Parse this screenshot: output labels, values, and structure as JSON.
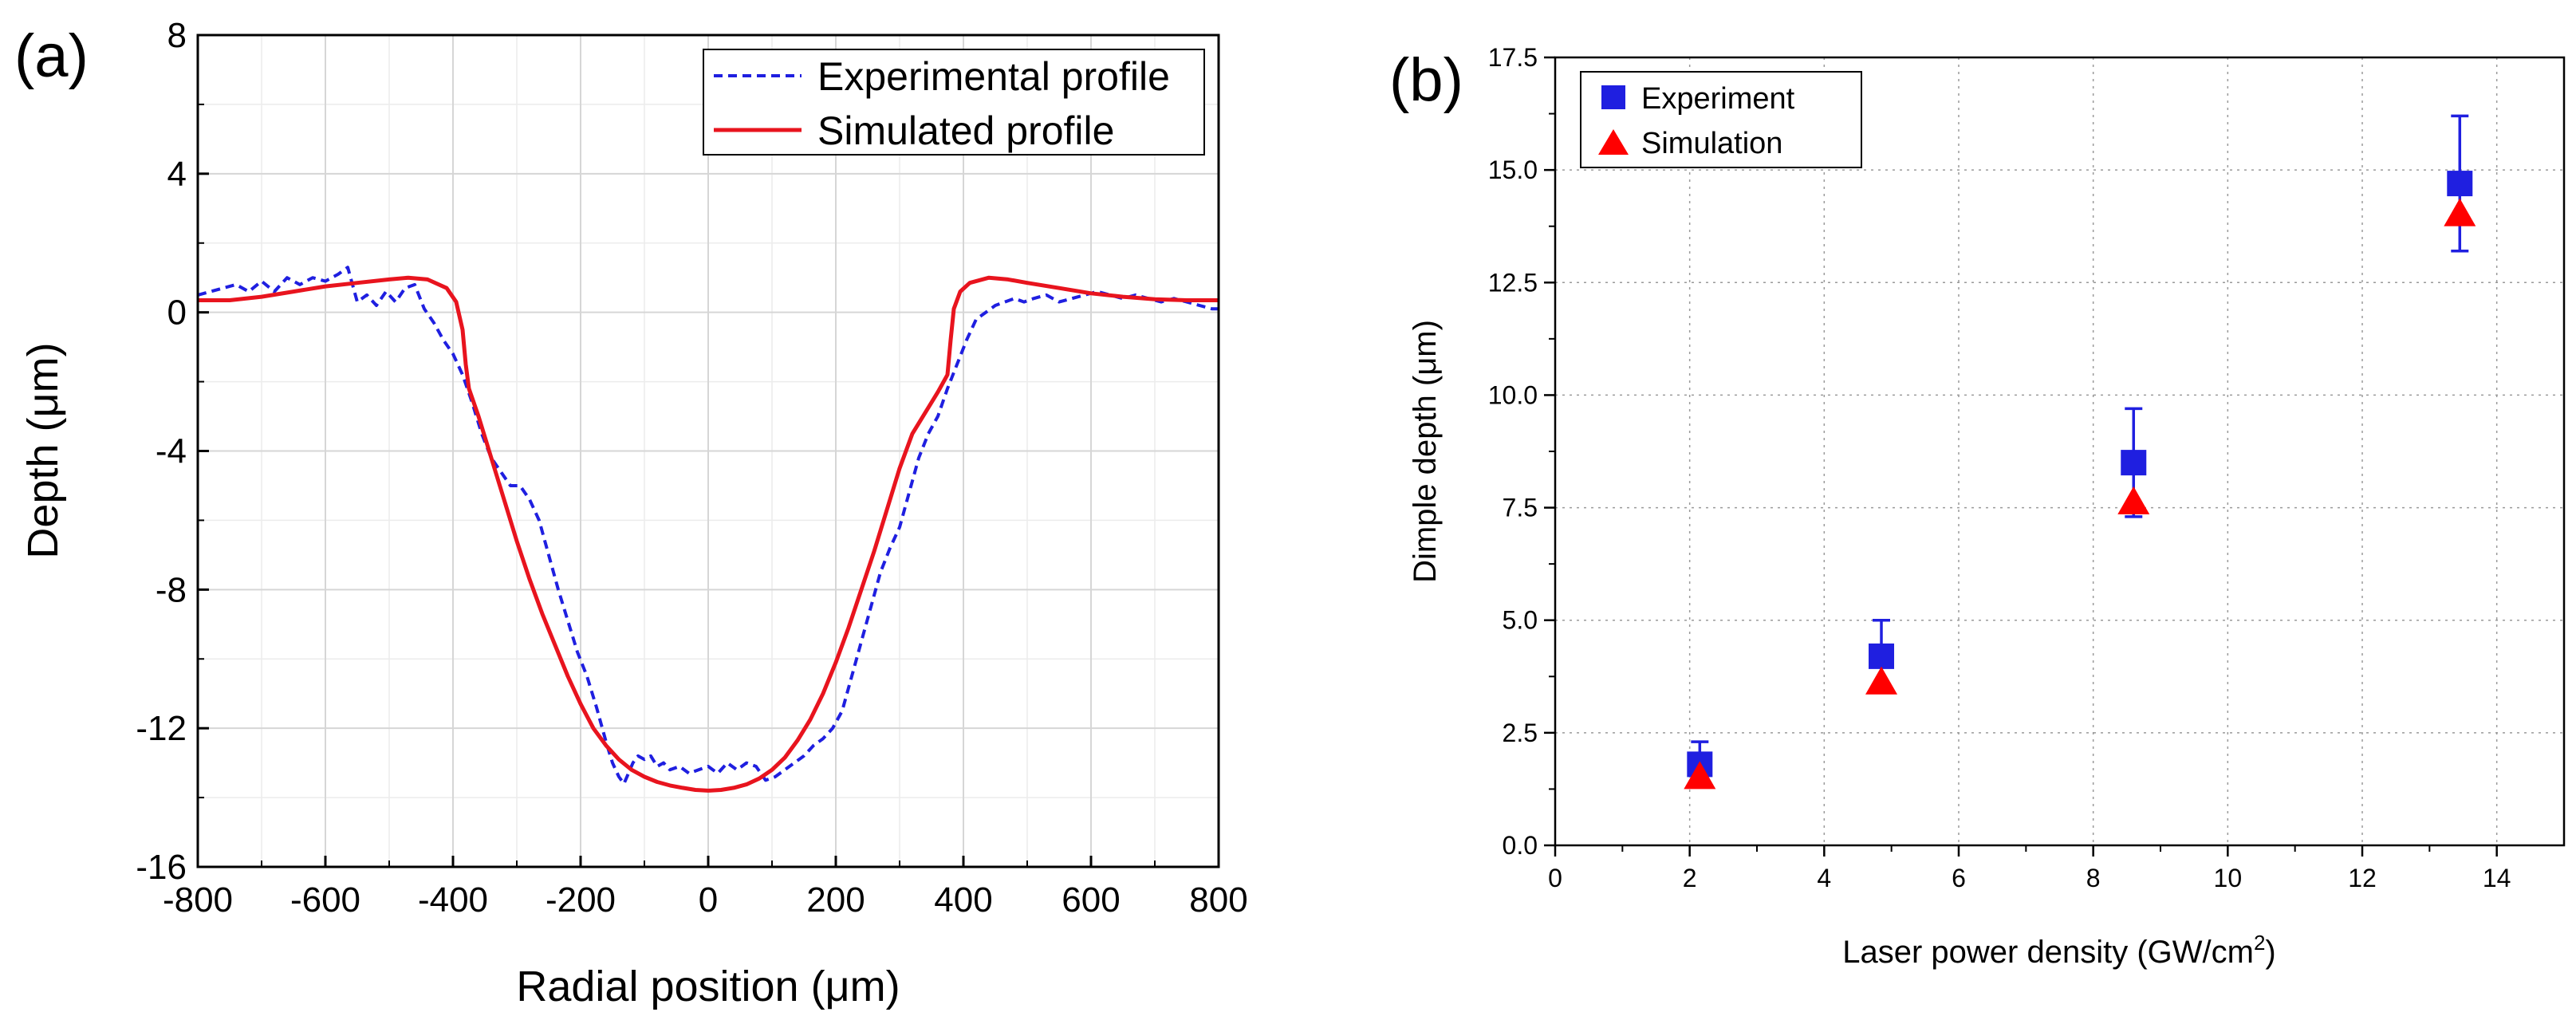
{
  "chart_data": [
    {
      "panel": "(a)",
      "type": "line",
      "xlabel": "Radial position (μm)",
      "ylabel": "Depth (μm)",
      "xlim": [
        -800,
        800
      ],
      "ylim": [
        -16,
        8
      ],
      "x_ticks": [
        "-800",
        "-600",
        "-400",
        "-200",
        "0",
        "200",
        "400",
        "600",
        "800"
      ],
      "y_ticks": [
        "-16",
        "-12",
        "-8",
        "-4",
        "0",
        "4",
        "8"
      ],
      "grid": true,
      "legend_position": "top-right",
      "series": [
        {
          "name": "Experimental profile",
          "style": "dashed",
          "color": "#1f1fe0",
          "x": [
            -800,
            -780,
            -760,
            -740,
            -720,
            -700,
            -680,
            -660,
            -640,
            -620,
            -600,
            -580,
            -565,
            -550,
            -535,
            -520,
            -505,
            -490,
            -475,
            -460,
            -445,
            -430,
            -415,
            -400,
            -385,
            -370,
            -355,
            -340,
            -325,
            -310,
            -295,
            -280,
            -265,
            -250,
            -235,
            -220,
            -205,
            -190,
            -175,
            -160,
            -150,
            -140,
            -132,
            -125,
            -118,
            -110,
            -100,
            -90,
            -80,
            -70,
            -60,
            -45,
            -30,
            -15,
            0,
            15,
            30,
            45,
            60,
            75,
            90,
            105,
            120,
            135,
            150,
            165,
            180,
            195,
            210,
            225,
            240,
            255,
            270,
            285,
            300,
            315,
            330,
            345,
            360,
            375,
            390,
            405,
            420,
            435,
            450,
            465,
            480,
            495,
            510,
            530,
            550,
            570,
            590,
            610,
            630,
            650,
            670,
            690,
            710,
            730,
            750,
            770,
            790,
            800
          ],
          "y": [
            0.5,
            0.6,
            0.7,
            0.8,
            0.6,
            0.9,
            0.6,
            1.0,
            0.8,
            1.0,
            0.9,
            1.1,
            1.3,
            0.3,
            0.5,
            0.2,
            0.6,
            0.3,
            0.7,
            0.8,
            0.1,
            -0.3,
            -0.8,
            -1.2,
            -1.8,
            -2.6,
            -3.5,
            -4.2,
            -4.6,
            -5.0,
            -5.0,
            -5.4,
            -6.0,
            -7.0,
            -8.0,
            -8.9,
            -9.8,
            -10.5,
            -11.4,
            -12.4,
            -13.0,
            -13.4,
            -13.6,
            -13.3,
            -13.0,
            -12.8,
            -12.9,
            -12.8,
            -13.1,
            -13.0,
            -13.2,
            -13.1,
            -13.3,
            -13.2,
            -13.1,
            -13.3,
            -13.0,
            -13.2,
            -13.0,
            -13.1,
            -13.5,
            -13.4,
            -13.2,
            -13.0,
            -12.8,
            -12.5,
            -12.3,
            -12.0,
            -11.5,
            -10.5,
            -9.5,
            -8.5,
            -7.5,
            -6.8,
            -6.2,
            -5.2,
            -4.2,
            -3.5,
            -3.0,
            -2.2,
            -1.5,
            -0.8,
            -0.2,
            0.0,
            0.2,
            0.3,
            0.4,
            0.3,
            0.4,
            0.5,
            0.3,
            0.4,
            0.5,
            0.6,
            0.5,
            0.4,
            0.5,
            0.4,
            0.3,
            0.4,
            0.3,
            0.2,
            0.1,
            0.1
          ]
        },
        {
          "name": "Simulated profile",
          "style": "solid",
          "color": "#e8141e",
          "x": [
            -800,
            -750,
            -700,
            -650,
            -600,
            -550,
            -500,
            -470,
            -440,
            -410,
            -395,
            -385,
            -380,
            -375,
            -360,
            -340,
            -320,
            -300,
            -280,
            -260,
            -240,
            -220,
            -200,
            -180,
            -160,
            -140,
            -120,
            -100,
            -80,
            -60,
            -40,
            -20,
            0,
            20,
            40,
            60,
            80,
            100,
            120,
            140,
            160,
            180,
            200,
            220,
            240,
            260,
            280,
            300,
            320,
            340,
            360,
            375,
            380,
            385,
            395,
            410,
            440,
            470,
            500,
            550,
            600,
            650,
            700,
            750,
            800
          ],
          "y": [
            0.35,
            0.35,
            0.45,
            0.6,
            0.75,
            0.85,
            0.95,
            1.0,
            0.95,
            0.7,
            0.3,
            -0.5,
            -1.5,
            -2.2,
            -3.0,
            -4.2,
            -5.4,
            -6.6,
            -7.7,
            -8.7,
            -9.6,
            -10.5,
            -11.3,
            -12.0,
            -12.5,
            -12.9,
            -13.2,
            -13.4,
            -13.55,
            -13.65,
            -13.72,
            -13.78,
            -13.8,
            -13.78,
            -13.72,
            -13.62,
            -13.45,
            -13.2,
            -12.85,
            -12.35,
            -11.75,
            -11.0,
            -10.1,
            -9.1,
            -8.0,
            -6.9,
            -5.7,
            -4.5,
            -3.5,
            -2.9,
            -2.3,
            -1.8,
            -0.8,
            0.1,
            0.6,
            0.85,
            1.0,
            0.95,
            0.85,
            0.7,
            0.55,
            0.45,
            0.38,
            0.35,
            0.35
          ]
        }
      ]
    },
    {
      "panel": "(b)",
      "type": "scatter",
      "xlabel": "Laser power density (GW/cm",
      "xlabel_sup": "2",
      "xlabel_close": ")",
      "ylabel": "Dimple depth (μm)",
      "xlim": [
        0,
        15
      ],
      "ylim": [
        0,
        17.5
      ],
      "x_ticks": [
        "0",
        "2",
        "4",
        "6",
        "8",
        "10",
        "12",
        "14"
      ],
      "y_ticks": [
        "0.0",
        "2.5",
        "5.0",
        "7.5",
        "10.0",
        "12.5",
        "15.0",
        "17.5"
      ],
      "grid": true,
      "legend_position": "top-left",
      "series": [
        {
          "name": "Experiment",
          "marker": "square",
          "color": "#1f1fe0",
          "x": [
            2.15,
            4.85,
            8.6,
            13.45
          ],
          "y": [
            1.8,
            4.2,
            8.5,
            14.7
          ],
          "error": [
            0.5,
            0.8,
            1.2,
            1.5
          ]
        },
        {
          "name": "Simulation",
          "marker": "triangle",
          "color": "#ff0000",
          "x": [
            2.15,
            4.85,
            8.6,
            13.45
          ],
          "y": [
            1.5,
            3.6,
            7.6,
            14.0
          ]
        }
      ]
    }
  ]
}
